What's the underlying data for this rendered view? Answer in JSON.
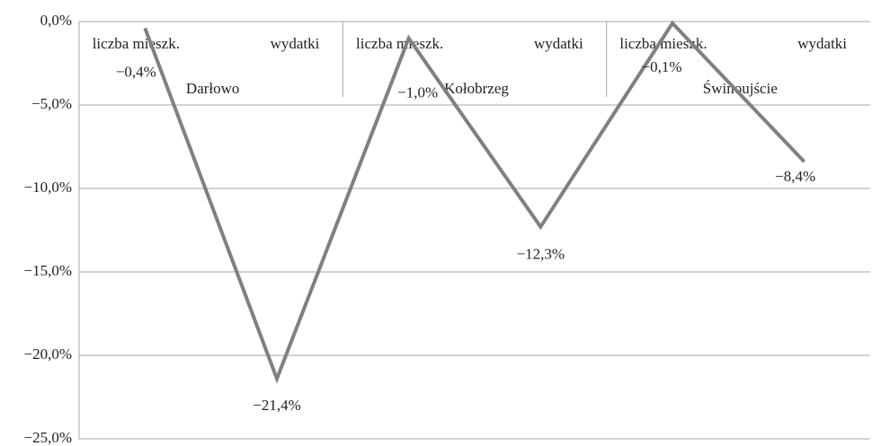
{
  "chart_data": {
    "type": "line",
    "categories": [
      "liczba mieszk.",
      "wydatki",
      "liczba mieszk.",
      "wydatki",
      "liczba mieszk.",
      "wydatki"
    ],
    "groups": [
      "Darłowo",
      "Kołobrzeg",
      "Świnoujście"
    ],
    "series": [
      {
        "color": "#808080",
        "values": [
          -0.4,
          -21.4,
          -1.0,
          -12.3,
          -0.1,
          -8.4
        ],
        "value_labels": [
          "−0,4%",
          "−21,4%",
          "−1,0%",
          "−12,3%",
          "−0,1%",
          "−8,4%"
        ]
      }
    ],
    "ylim": [
      -25,
      0
    ],
    "yticks": [
      {
        "value": 0,
        "label": "0,0%"
      },
      {
        "value": -5,
        "label": "−5,0%"
      },
      {
        "value": -10,
        "label": "−10,0%"
      },
      {
        "value": -15,
        "label": "−15,0%"
      },
      {
        "value": -20,
        "label": "−20,0%"
      },
      {
        "value": -25,
        "label": "−25,0%"
      }
    ],
    "grid": true
  }
}
